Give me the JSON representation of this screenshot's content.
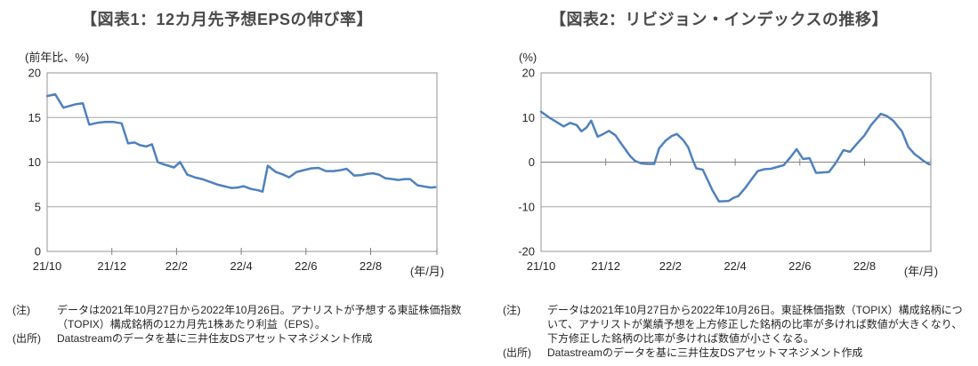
{
  "charts": [
    {
      "title": "【図表1：12カ月先予想EPSの伸び率】",
      "y_axis_unit": "(前年比、%)",
      "x_axis_unit": "(年/月)",
      "note_label": "(注)",
      "note_text": "データは2021年10月27日から2022年10月26日。アナリストが予想する東証株価指数（TOPIX）構成銘柄の12カ月先1株あたり利益（EPS）。",
      "source_label": "(出所)",
      "source_text": "Datastreamのデータを基に三井住友DSアセットマネジメント作成"
    },
    {
      "title": "【図表2：リビジョン・インデックスの推移】",
      "y_axis_unit": "(%)",
      "x_axis_unit": "(年/月)",
      "note_label": "(注)",
      "note_text": "データは2021年10月27日から2022年10月26日。東証株価指数（TOPIX）構成銘柄について、アナリストが業績予想を上方修正した銘柄の比率が多ければ数値が大きくなり、下方修正した銘柄の比率が多ければ数値が小さくなる。",
      "source_label": "(出所)",
      "source_text": "Datastreamのデータを基に三井住友DSアセットマネジメント作成"
    }
  ],
  "chart_data": [
    {
      "type": "line",
      "title": "【図表1：12カ月先予想EPSの伸び率】",
      "ylabel": "(前年比、%)",
      "xlabel": "(年/月)",
      "x_unit": "months since 2021/10",
      "x": [
        0,
        0.25,
        0.5,
        0.7,
        0.9,
        1.1,
        1.3,
        1.55,
        1.8,
        2.05,
        2.3,
        2.5,
        2.7,
        2.87,
        3.06,
        3.24,
        3.42,
        3.56,
        3.74,
        3.92,
        4.11,
        4.33,
        4.56,
        4.79,
        5.02,
        5.25,
        5.47,
        5.7,
        5.89,
        6.07,
        6.3,
        6.52,
        6.66,
        6.82,
        7.07,
        7.3,
        7.48,
        7.71,
        7.94,
        8.17,
        8.39,
        8.62,
        8.85,
        9.08,
        9.26,
        9.49,
        9.72,
        9.9,
        10.08,
        10.26,
        10.45,
        10.68,
        10.86,
        11.04,
        11.22,
        11.45,
        11.68,
        11.86,
        12.0
      ],
      "values": [
        17.4,
        17.6,
        16.1,
        16.3,
        16.5,
        16.6,
        14.2,
        14.4,
        14.5,
        14.5,
        14.35,
        12.1,
        12.2,
        11.9,
        11.75,
        12.0,
        10.0,
        9.8,
        9.6,
        9.4,
        10.0,
        8.6,
        8.3,
        8.1,
        7.8,
        7.5,
        7.3,
        7.1,
        7.15,
        7.3,
        7.0,
        6.85,
        6.7,
        9.6,
        8.9,
        8.6,
        8.3,
        8.9,
        9.1,
        9.3,
        9.35,
        9.0,
        9.0,
        9.1,
        9.25,
        8.5,
        8.55,
        8.7,
        8.75,
        8.6,
        8.2,
        8.1,
        8.0,
        8.1,
        8.1,
        7.4,
        7.25,
        7.15,
        7.2
      ],
      "x_tick_labels": [
        "21/10",
        "21/12",
        "22/2",
        "22/4",
        "22/6",
        "22/8"
      ],
      "x_tick_months": [
        0,
        2,
        4,
        6,
        8,
        10
      ],
      "xlim": [
        0,
        12.05
      ],
      "ylim": [
        0,
        20
      ],
      "y_ticks": [
        0,
        5,
        10,
        15,
        20
      ],
      "x_axis_value": 0,
      "grid": true,
      "legend": "none",
      "line_color": "#4F81BD"
    },
    {
      "type": "line",
      "title": "【図表2：リビジョン・インデックスの推移】",
      "ylabel": "(%)",
      "xlabel": "(年/月)",
      "x_unit": "months since 2021/10",
      "x": [
        0,
        0.25,
        0.5,
        0.7,
        0.9,
        1.1,
        1.25,
        1.4,
        1.55,
        1.75,
        1.9,
        2.0,
        2.1,
        2.3,
        2.45,
        2.6,
        2.75,
        2.9,
        3.1,
        3.3,
        3.5,
        3.65,
        3.85,
        4.05,
        4.2,
        4.4,
        4.55,
        4.7,
        4.8,
        5.0,
        5.15,
        5.3,
        5.5,
        5.8,
        5.95,
        6.1,
        6.3,
        6.5,
        6.7,
        6.9,
        7.1,
        7.3,
        7.5,
        7.7,
        7.9,
        8.1,
        8.3,
        8.5,
        8.7,
        8.9,
        9.1,
        9.35,
        9.55,
        9.75,
        10.0,
        10.2,
        10.5,
        10.7,
        10.9,
        11.05,
        11.15,
        11.35,
        11.55,
        11.7,
        11.8,
        11.95,
        12.0
      ],
      "values": [
        11.3,
        10.0,
        8.9,
        8.0,
        8.8,
        8.3,
        6.9,
        7.7,
        9.3,
        5.7,
        6.2,
        6.6,
        7.0,
        6.0,
        4.4,
        2.9,
        1.4,
        0.3,
        -0.3,
        -0.4,
        -0.4,
        3.1,
        4.8,
        5.9,
        6.3,
        4.9,
        3.3,
        0.3,
        -1.4,
        -1.7,
        -4.0,
        -6.3,
        -8.8,
        -8.7,
        -8.0,
        -7.6,
        -5.9,
        -3.9,
        -2.0,
        -1.6,
        -1.5,
        -1.1,
        -0.7,
        1.0,
        2.9,
        0.7,
        0.9,
        -2.4,
        -2.3,
        -2.2,
        -0.3,
        2.7,
        2.3,
        4.0,
        6.0,
        8.3,
        10.8,
        10.3,
        9.2,
        7.8,
        7.0,
        3.4,
        1.8,
        1.0,
        0.4,
        -0.3,
        -0.5
      ],
      "x_tick_labels": [
        "21/10",
        "21/12",
        "22/2",
        "22/4",
        "22/6",
        "22/8"
      ],
      "x_tick_months": [
        0,
        2,
        4,
        6,
        8,
        10
      ],
      "xlim": [
        0,
        12.05
      ],
      "ylim": [
        -20,
        20
      ],
      "y_ticks": [
        -20,
        -10,
        0,
        10,
        20
      ],
      "x_axis_value": 0,
      "grid": true,
      "legend": "none",
      "line_color": "#4F81BD"
    }
  ],
  "colors": {
    "line": "#4F81BD",
    "grid": "#A6A6A6",
    "axis": "#7F7F7F",
    "border": "#959595",
    "text": "#262626",
    "title": "#4A4A4A"
  }
}
